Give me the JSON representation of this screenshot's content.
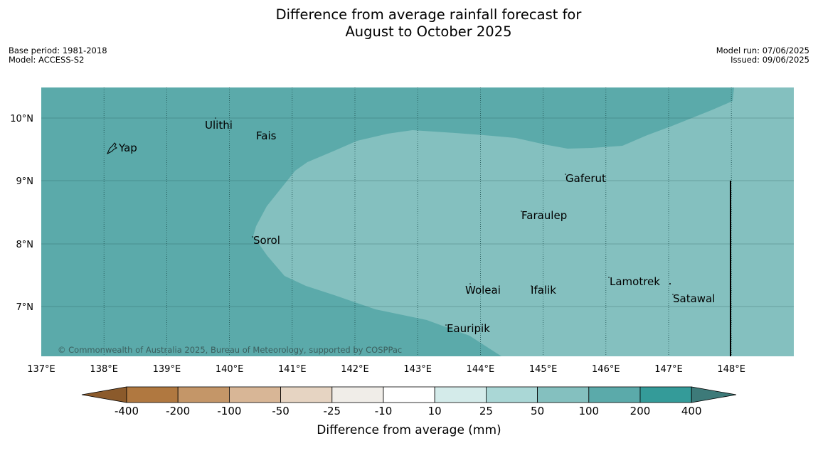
{
  "title": {
    "line1": "Difference from average rainfall forecast for",
    "line2": "August to October 2025"
  },
  "meta": {
    "base_period": "Base period: 1981-2018",
    "model": "Model: ACCESS-S2",
    "model_run": "Model run: 07/06/2025",
    "issued": "Issued: 09/06/2025"
  },
  "map": {
    "colors": {
      "class_100_200": "#5baaaa",
      "class_50_100": "#84c0bf",
      "gridline": "#1e4f4f",
      "coast": "#000000"
    },
    "lon_ticks": [
      "137°E",
      "138°E",
      "139°E",
      "140°E",
      "141°E",
      "142°E",
      "143°E",
      "144°E",
      "145°E",
      "146°E",
      "147°E",
      "148°E"
    ],
    "lat_ticks": [
      "10°N",
      "9°N",
      "8°N",
      "7°N"
    ],
    "places": {
      "yap": "Yap",
      "ulithi": "Ulithi",
      "fais": "Fais",
      "gaferut": "Gaferut",
      "faraulep": "Faraulep",
      "sorol": "Sorol",
      "woleai": "Woleai",
      "ifalik": "Ifalik",
      "lamotrek": "Lamotrek",
      "satawal": "Satawal",
      "eauripik": "Eauripik"
    },
    "copyright": "© Commonwealth of Australia 2025, Bureau of Meteorology, supported by COSPPac"
  },
  "colorbar": {
    "boundaries": [
      "-400",
      "-200",
      "-100",
      "-50",
      "-25",
      "-10",
      "10",
      "25",
      "50",
      "100",
      "200",
      "400"
    ],
    "colors": [
      "#8b5a2b",
      "#b07840",
      "#c49668",
      "#d8b696",
      "#e6d4c2",
      "#f0ede8",
      "#ffffff",
      "#d4ebea",
      "#aad7d6",
      "#84c0bf",
      "#5baaaa",
      "#349b99",
      "#3d7a79"
    ],
    "label": "Difference from average (mm)"
  }
}
